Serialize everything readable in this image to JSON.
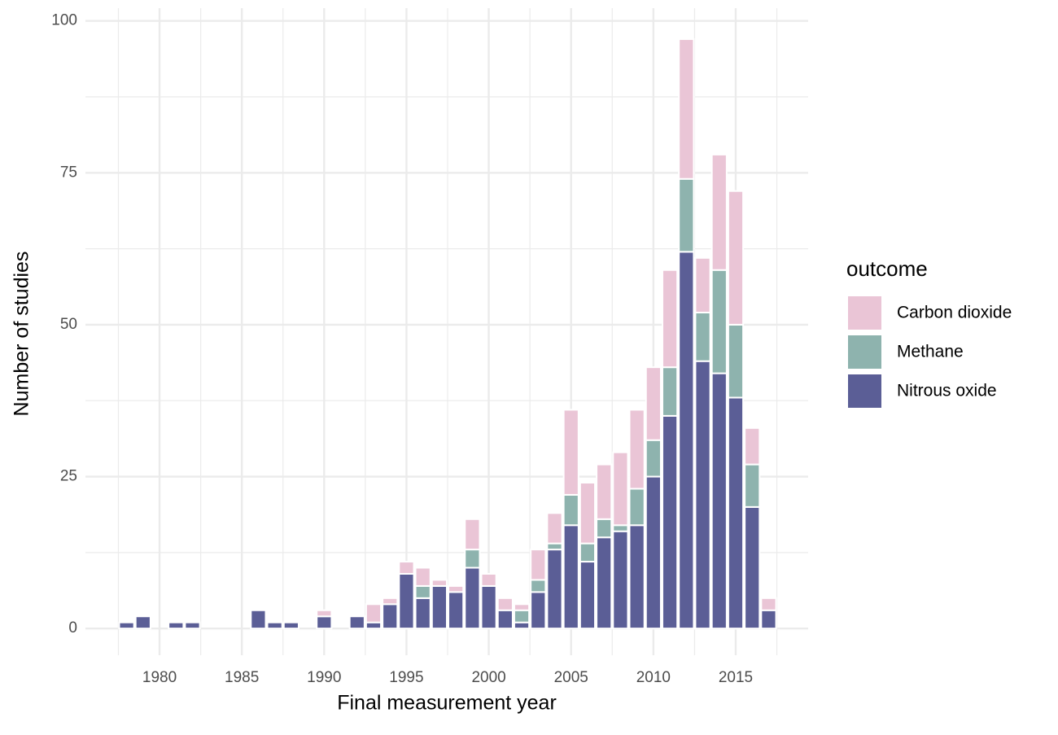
{
  "chart_data": {
    "type": "stacked-bar",
    "x_label": "Final measurement year",
    "y_label": "Number of studies",
    "legend_title": "outcome",
    "x": [
      1978,
      1979,
      1980,
      1981,
      1982,
      1983,
      1984,
      1985,
      1986,
      1987,
      1988,
      1989,
      1990,
      1991,
      1992,
      1993,
      1994,
      1995,
      1996,
      1997,
      1998,
      1999,
      2000,
      2001,
      2002,
      2003,
      2004,
      2005,
      2006,
      2007,
      2008,
      2009,
      2010,
      2011,
      2012,
      2013,
      2014,
      2015,
      2016,
      2017
    ],
    "series": [
      {
        "name": "Carbon dioxide",
        "color": "#eac5d6",
        "values": [
          0,
          0,
          0,
          0,
          0,
          0,
          0,
          0,
          0,
          0,
          0,
          0,
          1,
          0,
          0,
          3,
          1,
          2,
          3,
          1,
          1,
          5,
          2,
          2,
          1,
          5,
          5,
          14,
          10,
          9,
          12,
          13,
          12,
          16,
          23,
          9,
          19,
          22,
          6,
          2
        ]
      },
      {
        "name": "Methane",
        "color": "#8eb3ae",
        "values": [
          0,
          0,
          0,
          0,
          0,
          0,
          0,
          0,
          0,
          0,
          0,
          0,
          0,
          0,
          0,
          0,
          0,
          0,
          2,
          0,
          0,
          3,
          0,
          0,
          2,
          2,
          1,
          5,
          3,
          3,
          1,
          6,
          6,
          8,
          12,
          8,
          17,
          12,
          7,
          0
        ]
      },
      {
        "name": "Nitrous oxide",
        "color": "#5b5e96",
        "values": [
          1,
          2,
          0,
          1,
          1,
          0,
          0,
          0,
          3,
          1,
          1,
          0,
          2,
          0,
          2,
          1,
          4,
          9,
          5,
          7,
          6,
          10,
          7,
          3,
          1,
          6,
          13,
          17,
          11,
          15,
          16,
          17,
          25,
          35,
          62,
          44,
          42,
          38,
          20,
          3
        ]
      }
    ],
    "xlim": [
      1975.5,
      2019.4
    ],
    "xticks": [
      1980,
      1985,
      1990,
      1995,
      2000,
      2005,
      2010,
      2015
    ],
    "ylim": [
      -4.4,
      102.1
    ],
    "yticks": [
      0,
      25,
      50,
      75,
      100
    ],
    "grid": true,
    "legend": "right"
  }
}
